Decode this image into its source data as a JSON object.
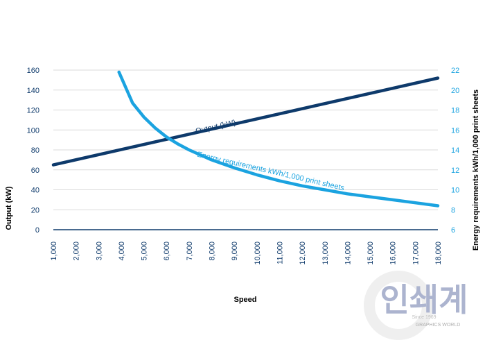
{
  "colors": {
    "output": "#0e3a6b",
    "energy": "#1ba3e0",
    "grid": "#d9d9d9",
    "axis": "#0e3a6b",
    "left_text": "#0e3a6b",
    "right_text": "#1ba3e0"
  },
  "chart_data": {
    "type": "line",
    "xlabel": "Speed",
    "ylabel": "Output (kW)",
    "y2label": "Energy requirements kWh/1,000 print sheets",
    "x_ticks": [
      1000,
      2000,
      3000,
      4000,
      5000,
      6000,
      7000,
      8000,
      9000,
      10000,
      11000,
      12000,
      13000,
      14000,
      15000,
      16000,
      17000,
      18000
    ],
    "x_tick_labels": [
      "1,000",
      "2,000",
      "3,000",
      "4,000",
      "5,000",
      "6,000",
      "7,000",
      "8,000",
      "9,000",
      "10,000",
      "11,000",
      "12,000",
      "13,000",
      "14,000",
      "15,000",
      "16,000",
      "17,000",
      "18,000"
    ],
    "xlim": [
      1000,
      18000
    ],
    "ylim": [
      0,
      160
    ],
    "y_ticks": [
      0,
      20,
      40,
      60,
      80,
      100,
      120,
      140,
      160
    ],
    "y2lim": [
      6,
      22
    ],
    "y2_ticks": [
      6,
      8,
      10,
      12,
      14,
      16,
      18,
      20,
      22
    ],
    "grid": true,
    "series": [
      {
        "name": "Output (kW)",
        "axis": "left",
        "x": [
          1000,
          18000
        ],
        "values": [
          65,
          152
        ]
      },
      {
        "name": "Energy requirements kWh/1,000 print sheets",
        "axis": "right",
        "x": [
          3900,
          4500,
          5000,
          5500,
          6000,
          6500,
          7000,
          8000,
          9000,
          10000,
          11000,
          12000,
          13000,
          14000,
          15000,
          16000,
          17000,
          18000
        ],
        "values": [
          21.8,
          18.7,
          17.3,
          16.2,
          15.3,
          14.6,
          14.0,
          13.0,
          12.2,
          11.5,
          10.9,
          10.4,
          10.0,
          9.6,
          9.3,
          9.0,
          8.7,
          8.4
        ]
      }
    ]
  },
  "watermark": {
    "hangul": "인쇄계",
    "since": "Since 1969",
    "brand": "GRAPHICS WORLD"
  }
}
